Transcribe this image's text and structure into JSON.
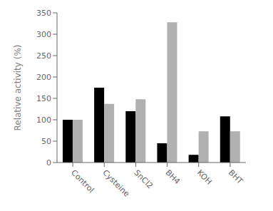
{
  "chart_data": {
    "type": "bar",
    "categories": [
      "Control",
      "Cysteine",
      "SnCl2",
      "BH4",
      "KOH",
      "BHT"
    ],
    "series": [
      {
        "color": "black",
        "values": [
          100,
          175,
          120,
          45,
          18,
          108
        ]
      },
      {
        "color": "#b0b0b0",
        "values": [
          100,
          137,
          148,
          328,
          73,
          73
        ]
      }
    ],
    "ylabel": "Relative activity (%)",
    "ylim": [
      0,
      350
    ],
    "yticks": [
      0,
      50,
      100,
      150,
      200,
      250,
      300,
      350
    ],
    "grid": false
  }
}
